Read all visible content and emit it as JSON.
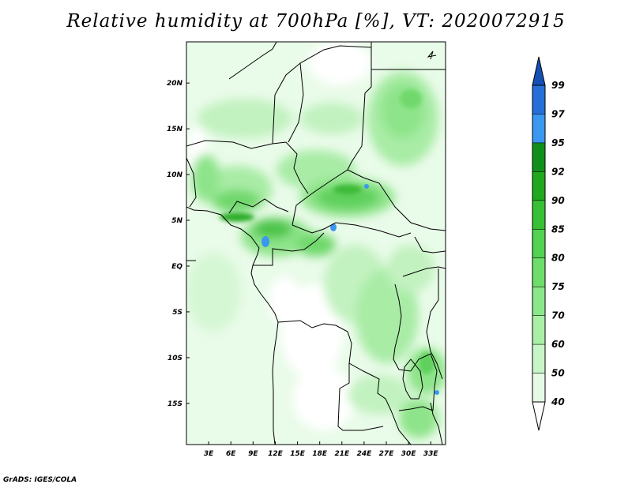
{
  "title": "Relative humidity at 700hPa [%], VT: 2020072915",
  "credit": "GrADS: IGES/COLA",
  "map": {
    "lon_range": [
      0,
      35
    ],
    "lat_range": [
      -19.5,
      24.5
    ],
    "lon_ticks": [
      "3E",
      "6E",
      "9E",
      "12E",
      "15E",
      "18E",
      "21E",
      "24E",
      "27E",
      "30E",
      "33E"
    ],
    "lon_tick_values": [
      3,
      6,
      9,
      12,
      15,
      18,
      21,
      24,
      27,
      30,
      33
    ],
    "lat_ticks": [
      "20N",
      "15N",
      "10N",
      "5N",
      "EQ",
      "5S",
      "10S",
      "15S"
    ],
    "lat_tick_values": [
      20,
      15,
      10,
      5,
      0,
      -5,
      -10,
      -15
    ]
  },
  "colorbar": {
    "labels": [
      "40",
      "50",
      "60",
      "70",
      "75",
      "80",
      "85",
      "90",
      "92",
      "95",
      "97",
      "99"
    ],
    "colors": [
      "#ffffff",
      "#e6fbe6",
      "#c8f5c8",
      "#aaefa6",
      "#8be88a",
      "#6ede6b",
      "#52d251",
      "#37c034",
      "#20a81e",
      "#10901a",
      "#3a98f0",
      "#2470d8",
      "#1450b4"
    ]
  }
}
